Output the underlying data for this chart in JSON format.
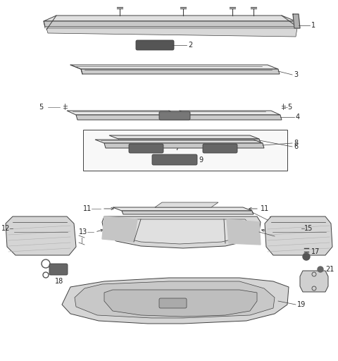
{
  "bg_color": "#ffffff",
  "line_color": "#404040",
  "fig_width": 4.8,
  "fig_height": 5.12,
  "dpi": 100,
  "label_fs": 7,
  "lw": 0.7
}
